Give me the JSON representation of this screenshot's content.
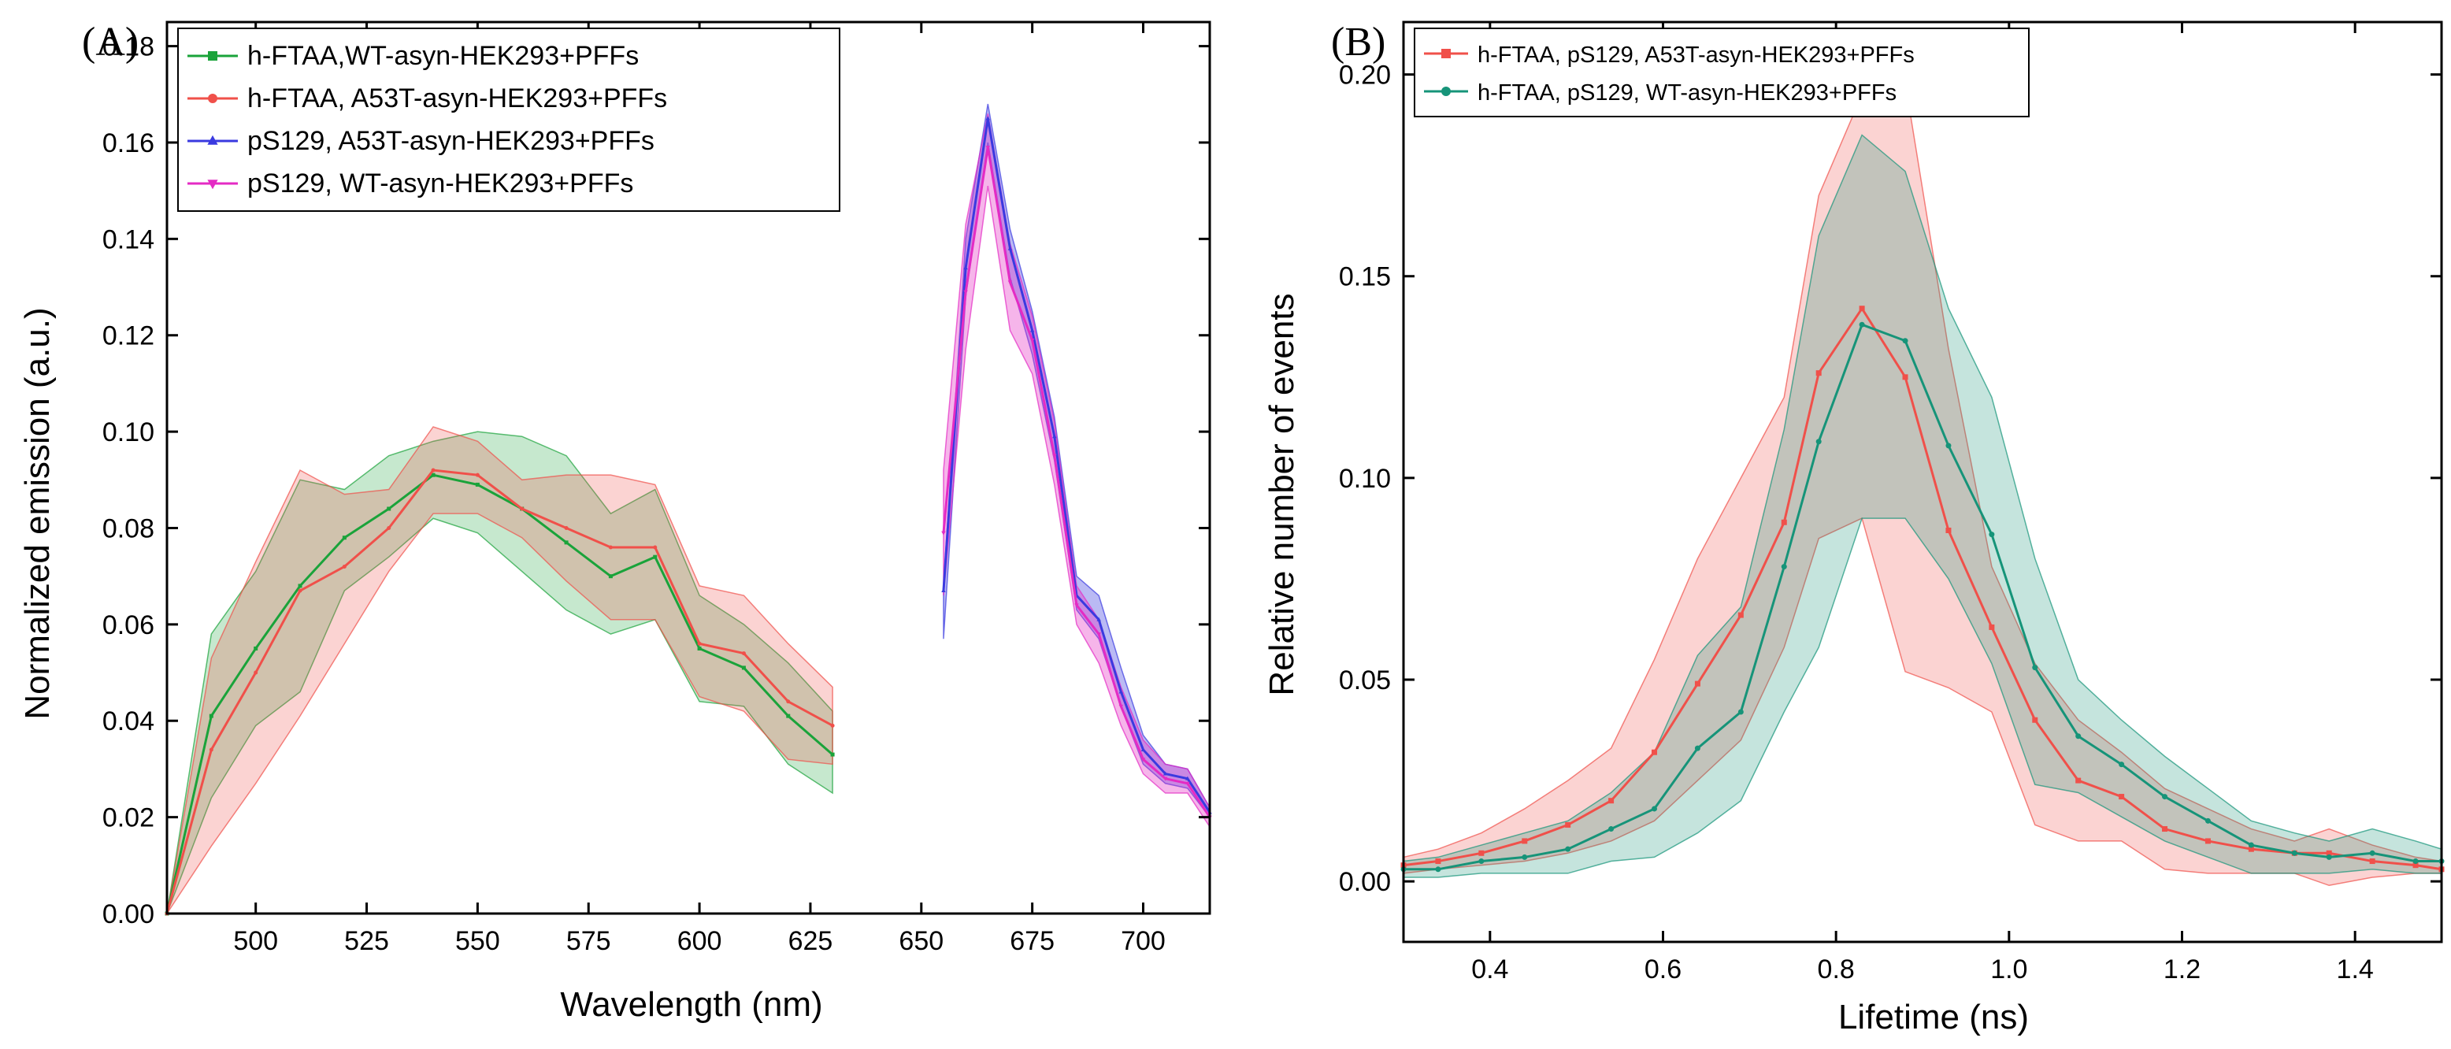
{
  "chart_data": [
    {
      "id": "A",
      "type": "line",
      "panel_label": "(A)",
      "xlabel": "Wavelength (nm)",
      "ylabel": "Normalized emission (a.u.)",
      "xlim": [
        480,
        715
      ],
      "ylim": [
        0,
        0.185
      ],
      "xticks": [
        500,
        525,
        550,
        575,
        600,
        625,
        650,
        675,
        700
      ],
      "yticks": [
        0.0,
        0.02,
        0.04,
        0.06,
        0.08,
        0.1,
        0.12,
        0.14,
        0.16,
        0.18
      ],
      "ytick_labels": [
        "0.00",
        "0.02",
        "0.04",
        "0.06",
        "0.08",
        "0.10",
        "0.12",
        "0.14",
        "0.16",
        "0.18"
      ],
      "legend_position": "top-left",
      "series": [
        {
          "name": "h-FTAA,WT-asyn-HEK293+PFFs",
          "color": "#1aa33a",
          "marker": "square",
          "x": [
            480,
            490,
            500,
            510,
            520,
            530,
            540,
            550,
            560,
            570,
            580,
            590,
            600,
            610,
            620,
            630
          ],
          "y": [
            0.0,
            0.041,
            0.055,
            0.068,
            0.078,
            0.084,
            0.091,
            0.089,
            0.084,
            0.077,
            0.07,
            0.074,
            0.055,
            0.051,
            0.041,
            0.033
          ],
          "band_upper": [
            0.0,
            0.058,
            0.071,
            0.09,
            0.088,
            0.095,
            0.098,
            0.1,
            0.099,
            0.095,
            0.083,
            0.088,
            0.066,
            0.06,
            0.052,
            0.042
          ],
          "band_lower": [
            0.0,
            0.024,
            0.039,
            0.046,
            0.067,
            0.074,
            0.082,
            0.079,
            0.071,
            0.063,
            0.058,
            0.061,
            0.044,
            0.043,
            0.031,
            0.025
          ]
        },
        {
          "name": "h-FTAA, A53T-asyn-HEK293+PFFs",
          "color": "#f0504a",
          "marker": "circle",
          "x": [
            480,
            490,
            500,
            510,
            520,
            530,
            540,
            550,
            560,
            570,
            580,
            590,
            600,
            610,
            620,
            630
          ],
          "y": [
            0.0,
            0.034,
            0.05,
            0.067,
            0.072,
            0.08,
            0.092,
            0.091,
            0.084,
            0.08,
            0.076,
            0.076,
            0.056,
            0.054,
            0.044,
            0.039
          ],
          "band_upper": [
            0.0,
            0.053,
            0.073,
            0.092,
            0.087,
            0.088,
            0.101,
            0.098,
            0.09,
            0.091,
            0.091,
            0.089,
            0.068,
            0.066,
            0.056,
            0.047
          ],
          "band_lower": [
            0.0,
            0.014,
            0.027,
            0.041,
            0.056,
            0.071,
            0.083,
            0.083,
            0.078,
            0.069,
            0.061,
            0.061,
            0.045,
            0.042,
            0.032,
            0.031
          ]
        },
        {
          "name": "pS129,  A53T-asyn-HEK293+PFFs",
          "color": "#3a3ae0",
          "marker": "triangle-up",
          "x": [
            655,
            660,
            665,
            670,
            675,
            680,
            685,
            690,
            695,
            700,
            705,
            710,
            715
          ],
          "y": [
            0.067,
            0.134,
            0.165,
            0.138,
            0.121,
            0.099,
            0.066,
            0.061,
            0.046,
            0.034,
            0.029,
            0.028,
            0.021
          ],
          "band_upper": [
            0.068,
            0.14,
            0.168,
            0.142,
            0.125,
            0.103,
            0.07,
            0.066,
            0.051,
            0.037,
            0.031,
            0.03,
            0.022
          ],
          "band_lower": [
            0.057,
            0.128,
            0.16,
            0.132,
            0.116,
            0.094,
            0.063,
            0.057,
            0.043,
            0.031,
            0.027,
            0.026,
            0.02
          ]
        },
        {
          "name": "pS129, WT-asyn-HEK293+PFFs",
          "color": "#e42bc4",
          "marker": "triangle-down",
          "x": [
            655,
            660,
            665,
            670,
            675,
            680,
            685,
            690,
            695,
            700,
            705,
            710,
            715
          ],
          "y": [
            0.079,
            0.129,
            0.159,
            0.131,
            0.119,
            0.095,
            0.064,
            0.058,
            0.043,
            0.032,
            0.028,
            0.027,
            0.02
          ],
          "band_upper": [
            0.092,
            0.143,
            0.166,
            0.139,
            0.124,
            0.102,
            0.068,
            0.061,
            0.047,
            0.036,
            0.031,
            0.03,
            0.022
          ],
          "band_lower": [
            0.066,
            0.117,
            0.151,
            0.121,
            0.112,
            0.089,
            0.06,
            0.052,
            0.039,
            0.029,
            0.025,
            0.025,
            0.018
          ]
        }
      ]
    },
    {
      "id": "B",
      "type": "line",
      "panel_label": "(B)",
      "xlabel": "Lifetime (ns)",
      "ylabel": "Relative number of events",
      "xlim": [
        0.3,
        1.5
      ],
      "ylim": [
        -0.015,
        0.213
      ],
      "xticks": [
        0.4,
        0.6,
        0.8,
        1.0,
        1.2,
        1.4
      ],
      "xtick_labels": [
        "0.4",
        "0.6",
        "0.8",
        "1.0",
        "1.2",
        "1.4"
      ],
      "yticks": [
        0.0,
        0.05,
        0.1,
        0.15,
        0.2
      ],
      "ytick_labels": [
        "0.00",
        "0.05",
        "0.10",
        "0.15",
        "0.20"
      ],
      "legend_position": "top-left",
      "series": [
        {
          "name": "h-FTAA, pS129, A53T-asyn-HEK293+PFFs",
          "color": "#f0504a",
          "marker": "square",
          "x": [
            0.3,
            0.34,
            0.39,
            0.44,
            0.49,
            0.54,
            0.59,
            0.64,
            0.69,
            0.74,
            0.78,
            0.83,
            0.88,
            0.93,
            0.98,
            1.03,
            1.08,
            1.13,
            1.18,
            1.23,
            1.28,
            1.33,
            1.37,
            1.42,
            1.47,
            1.5
          ],
          "y": [
            0.004,
            0.005,
            0.007,
            0.01,
            0.014,
            0.02,
            0.032,
            0.049,
            0.066,
            0.089,
            0.126,
            0.142,
            0.125,
            0.087,
            0.063,
            0.04,
            0.025,
            0.021,
            0.013,
            0.01,
            0.008,
            0.007,
            0.007,
            0.005,
            0.004,
            0.003
          ],
          "band_upper": [
            0.006,
            0.008,
            0.012,
            0.018,
            0.025,
            0.033,
            0.055,
            0.08,
            0.1,
            0.12,
            0.17,
            0.195,
            0.198,
            0.132,
            0.078,
            0.054,
            0.04,
            0.032,
            0.023,
            0.018,
            0.013,
            0.01,
            0.013,
            0.009,
            0.006,
            0.005
          ],
          "band_lower": [
            0.002,
            0.003,
            0.004,
            0.005,
            0.007,
            0.01,
            0.015,
            0.025,
            0.035,
            0.058,
            0.085,
            0.09,
            0.052,
            0.048,
            0.042,
            0.014,
            0.01,
            0.01,
            0.003,
            0.002,
            0.002,
            0.002,
            -0.001,
            0.001,
            0.002,
            0.002
          ]
        },
        {
          "name": "h-FTAA, pS129, WT-asyn-HEK293+PFFs",
          "color": "#169479",
          "marker": "circle",
          "x": [
            0.3,
            0.34,
            0.39,
            0.44,
            0.49,
            0.54,
            0.59,
            0.64,
            0.69,
            0.74,
            0.78,
            0.83,
            0.88,
            0.93,
            0.98,
            1.03,
            1.08,
            1.13,
            1.18,
            1.23,
            1.28,
            1.33,
            1.37,
            1.42,
            1.47,
            1.5
          ],
          "y": [
            0.003,
            0.003,
            0.005,
            0.006,
            0.008,
            0.013,
            0.018,
            0.033,
            0.042,
            0.078,
            0.109,
            0.138,
            0.134,
            0.108,
            0.086,
            0.053,
            0.036,
            0.029,
            0.021,
            0.015,
            0.009,
            0.007,
            0.006,
            0.007,
            0.005,
            0.005
          ],
          "band_upper": [
            0.005,
            0.006,
            0.009,
            0.012,
            0.015,
            0.022,
            0.032,
            0.056,
            0.068,
            0.112,
            0.16,
            0.185,
            0.176,
            0.142,
            0.12,
            0.08,
            0.05,
            0.04,
            0.031,
            0.023,
            0.015,
            0.012,
            0.01,
            0.013,
            0.01,
            0.008
          ],
          "band_lower": [
            0.001,
            0.001,
            0.002,
            0.002,
            0.002,
            0.005,
            0.006,
            0.012,
            0.02,
            0.042,
            0.058,
            0.09,
            0.09,
            0.075,
            0.054,
            0.024,
            0.022,
            0.016,
            0.01,
            0.006,
            0.002,
            0.002,
            0.002,
            0.003,
            0.002,
            0.002
          ]
        }
      ]
    }
  ]
}
